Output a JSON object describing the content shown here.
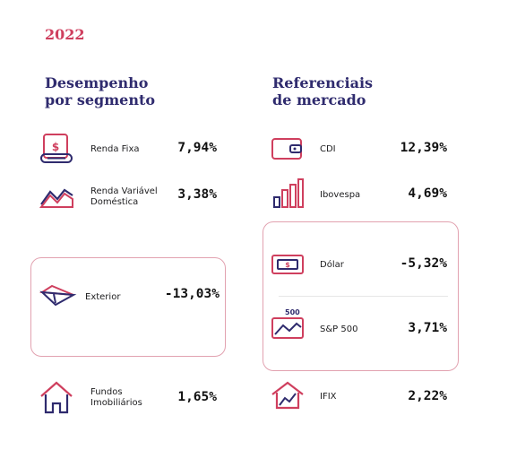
{
  "year": "2022",
  "left_heading": [
    "Desempenho",
    "por segmento"
  ],
  "right_heading": [
    "Referenciais",
    "de mercado"
  ],
  "segments": [
    {
      "lines": [
        "Renda Fixa"
      ],
      "value": "7,94%",
      "icon": "receipt-dollar-icon"
    },
    {
      "lines": [
        "Renda Variável",
        "Doméstica"
      ],
      "value": "3,38%",
      "icon": "stock-chart-icon"
    },
    {
      "lines": [
        "Exterior"
      ],
      "value": "-13,03%",
      "icon": "paper-plane-icon"
    },
    {
      "lines": [
        "Fundos",
        "Imobiliários"
      ],
      "value": "1,65%",
      "icon": "house-icon"
    }
  ],
  "benchmarks": [
    {
      "lines": [
        "CDI"
      ],
      "value": "12,39%",
      "icon": "wallet-icon"
    },
    {
      "lines": [
        "Ibovespa"
      ],
      "value": "4,69%",
      "icon": "bar-chart-icon"
    },
    {
      "lines": [
        "Dólar"
      ],
      "value": "-5,32%",
      "icon": "banknote-icon"
    },
    {
      "lines": [
        "S&P 500"
      ],
      "value": "3,71%",
      "icon": "sp500-chart-icon",
      "badge": "500"
    },
    {
      "lines": [
        "IFIX"
      ],
      "value": "2,22%",
      "icon": "house-chart-icon"
    }
  ],
  "colors": {
    "accent": "#cf3f5e",
    "navy": "#2f2b6e",
    "box_border": "#e2a2b0"
  }
}
